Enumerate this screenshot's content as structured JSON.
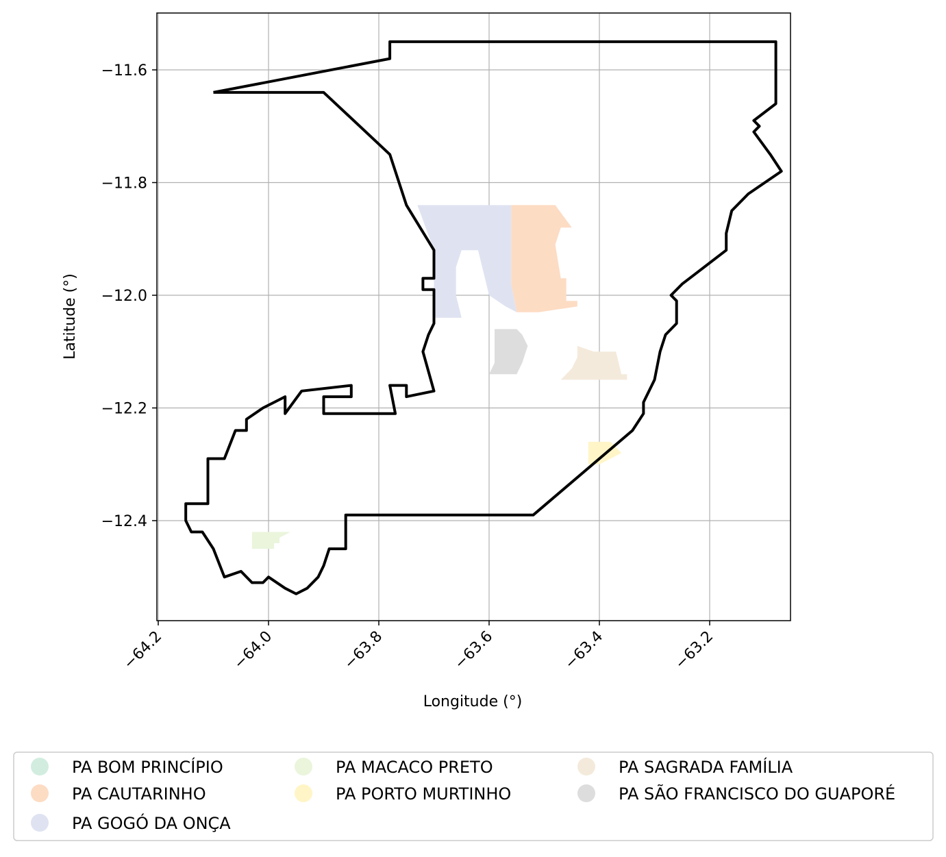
{
  "chart_data": {
    "type": "map",
    "title": "",
    "xlabel": "Longitude (°)",
    "ylabel": "Latitude (°)",
    "xlim": [
      -64.2,
      -63.05
    ],
    "ylim": [
      -12.58,
      -11.5
    ],
    "xticks": [
      -64.2,
      -64.0,
      -63.8,
      -63.6,
      -63.4,
      -63.2
    ],
    "xtick_labels": [
      "−64.2",
      "−64.0",
      "−63.8",
      "−63.6",
      "−63.4",
      "−63.2"
    ],
    "yticks": [
      -11.6,
      -11.8,
      -12.0,
      -12.2,
      -12.4
    ],
    "ytick_labels": [
      "−11.6",
      "−11.8",
      "−12.0",
      "−12.2",
      "−12.4"
    ],
    "grid": true,
    "legend_position": "bottom",
    "boundary_color": "#000000",
    "boundary": [
      [
        -64.1,
        -11.64
      ],
      [
        -63.78,
        -11.58
      ],
      [
        -63.78,
        -11.55
      ],
      [
        -63.08,
        -11.55
      ],
      [
        -63.08,
        -11.66
      ],
      [
        -63.12,
        -11.69
      ],
      [
        -63.11,
        -11.7
      ],
      [
        -63.12,
        -11.71
      ],
      [
        -63.09,
        -11.75
      ],
      [
        -63.07,
        -11.78
      ],
      [
        -63.13,
        -11.82
      ],
      [
        -63.16,
        -11.85
      ],
      [
        -63.17,
        -11.89
      ],
      [
        -63.17,
        -11.92
      ],
      [
        -63.25,
        -11.98
      ],
      [
        -63.27,
        -12.0
      ],
      [
        -63.26,
        -12.01
      ],
      [
        -63.26,
        -12.05
      ],
      [
        -63.28,
        -12.07
      ],
      [
        -63.29,
        -12.1
      ],
      [
        -63.3,
        -12.15
      ],
      [
        -63.32,
        -12.19
      ],
      [
        -63.32,
        -12.21
      ],
      [
        -63.34,
        -12.24
      ],
      [
        -63.52,
        -12.39
      ],
      [
        -63.86,
        -12.39
      ],
      [
        -63.86,
        -12.45
      ],
      [
        -63.89,
        -12.45
      ],
      [
        -63.9,
        -12.48
      ],
      [
        -63.91,
        -12.5
      ],
      [
        -63.93,
        -12.52
      ],
      [
        -63.95,
        -12.53
      ],
      [
        -63.97,
        -12.52
      ],
      [
        -64.0,
        -12.5
      ],
      [
        -64.01,
        -12.51
      ],
      [
        -64.03,
        -12.51
      ],
      [
        -64.05,
        -12.49
      ],
      [
        -64.08,
        -12.5
      ],
      [
        -64.1,
        -12.45
      ],
      [
        -64.12,
        -12.42
      ],
      [
        -64.14,
        -12.42
      ],
      [
        -64.15,
        -12.4
      ],
      [
        -64.15,
        -12.37
      ],
      [
        -64.11,
        -12.37
      ],
      [
        -64.11,
        -12.29
      ],
      [
        -64.08,
        -12.29
      ],
      [
        -64.06,
        -12.24
      ],
      [
        -64.04,
        -12.24
      ],
      [
        -64.04,
        -12.22
      ],
      [
        -64.01,
        -12.2
      ],
      [
        -63.97,
        -12.18
      ],
      [
        -63.97,
        -12.21
      ],
      [
        -63.94,
        -12.17
      ],
      [
        -63.85,
        -12.16
      ],
      [
        -63.85,
        -12.18
      ],
      [
        -63.9,
        -12.18
      ],
      [
        -63.9,
        -12.21
      ],
      [
        -63.77,
        -12.21
      ],
      [
        -63.78,
        -12.16
      ],
      [
        -63.75,
        -12.16
      ],
      [
        -63.75,
        -12.18
      ],
      [
        -63.7,
        -12.17
      ],
      [
        -63.72,
        -12.1
      ],
      [
        -63.71,
        -12.07
      ],
      [
        -63.7,
        -12.05
      ],
      [
        -63.7,
        -11.99
      ],
      [
        -63.72,
        -11.99
      ],
      [
        -63.72,
        -11.97
      ],
      [
        -63.7,
        -11.97
      ],
      [
        -63.7,
        -11.92
      ],
      [
        -63.75,
        -11.84
      ],
      [
        -63.78,
        -11.75
      ],
      [
        -63.9,
        -11.64
      ],
      [
        -64.1,
        -11.64
      ]
    ],
    "series": [
      {
        "name": "PA BOM PRINCÍPIO",
        "color": "#d2ede0",
        "polygon": []
      },
      {
        "name": "PA CAUTARINHO",
        "color": "#fddcc4",
        "polygon": [
          [
            -63.56,
            -11.84
          ],
          [
            -63.48,
            -11.84
          ],
          [
            -63.45,
            -11.88
          ],
          [
            -63.47,
            -11.88
          ],
          [
            -63.48,
            -11.91
          ],
          [
            -63.47,
            -11.97
          ],
          [
            -63.46,
            -11.97
          ],
          [
            -63.46,
            -12.01
          ],
          [
            -63.44,
            -12.01
          ],
          [
            -63.44,
            -12.02
          ],
          [
            -63.51,
            -12.03
          ],
          [
            -63.55,
            -12.03
          ],
          [
            -63.56,
            -11.98
          ]
        ]
      },
      {
        "name": "PA GOGÓ DA ONÇA",
        "color": "#dfe3f1",
        "polygon": [
          [
            -63.73,
            -11.84
          ],
          [
            -63.56,
            -11.84
          ],
          [
            -63.56,
            -11.98
          ],
          [
            -63.55,
            -12.03
          ],
          [
            -63.57,
            -12.02
          ],
          [
            -63.6,
            -12.0
          ],
          [
            -63.62,
            -11.92
          ],
          [
            -63.65,
            -11.92
          ],
          [
            -63.66,
            -11.95
          ],
          [
            -63.66,
            -12.0
          ],
          [
            -63.65,
            -12.04
          ],
          [
            -63.7,
            -12.04
          ],
          [
            -63.7,
            -11.92
          ]
        ]
      },
      {
        "name": "PA MACACO PRETO",
        "color": "#eaf5dc",
        "polygon": [
          [
            -64.03,
            -12.42
          ],
          [
            -63.96,
            -12.42
          ],
          [
            -63.98,
            -12.43
          ],
          [
            -63.98,
            -12.44
          ],
          [
            -63.99,
            -12.44
          ],
          [
            -63.99,
            -12.45
          ],
          [
            -64.03,
            -12.45
          ]
        ]
      },
      {
        "name": "PA PORTO MURTINHO",
        "color": "#fff5c7",
        "polygon": [
          [
            -63.42,
            -12.26
          ],
          [
            -63.38,
            -12.26
          ],
          [
            -63.36,
            -12.28
          ],
          [
            -63.4,
            -12.3
          ],
          [
            -63.42,
            -12.3
          ]
        ]
      },
      {
        "name": "PA SAGRADA FAMÍLIA",
        "color": "#f4eadb",
        "polygon": [
          [
            -63.44,
            -12.09
          ],
          [
            -63.41,
            -12.1
          ],
          [
            -63.37,
            -12.1
          ],
          [
            -63.36,
            -12.14
          ],
          [
            -63.35,
            -12.14
          ],
          [
            -63.35,
            -12.15
          ],
          [
            -63.47,
            -12.15
          ],
          [
            -63.45,
            -12.13
          ],
          [
            -63.44,
            -12.11
          ]
        ]
      },
      {
        "name": "PA SÃO FRANCISCO DO GUAPORÉ",
        "color": "#dddddd",
        "polygon": [
          [
            -63.59,
            -12.06
          ],
          [
            -63.55,
            -12.06
          ],
          [
            -63.54,
            -12.07
          ],
          [
            -63.53,
            -12.09
          ],
          [
            -63.54,
            -12.12
          ],
          [
            -63.55,
            -12.14
          ],
          [
            -63.6,
            -12.14
          ],
          [
            -63.59,
            -12.12
          ],
          [
            -63.59,
            -12.08
          ]
        ]
      }
    ]
  }
}
